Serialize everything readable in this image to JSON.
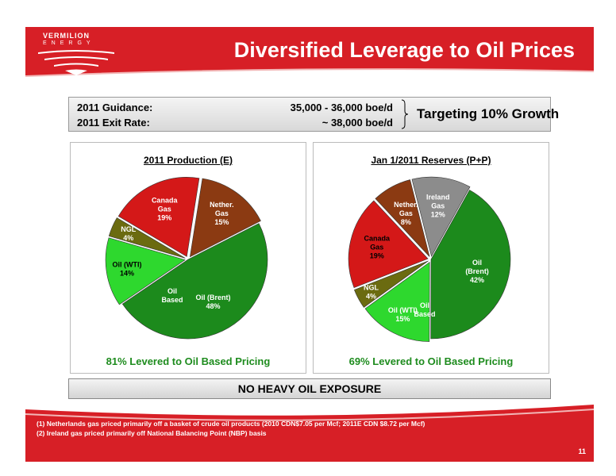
{
  "header": {
    "title": "Diversified Leverage to Oil Prices",
    "logo_line1": "VERMILION",
    "logo_line2": "ENERGY"
  },
  "guidance": {
    "row1_label": "2011 Guidance:",
    "row1_value": "35,000 - 36,000 boe/d",
    "row2_label": "2011 Exit Rate:",
    "row2_value": "~ 38,000 boe/d",
    "target": "Targeting 10% Growth"
  },
  "left_panel": {
    "footer": "81% Levered to Oil Based Pricing"
  },
  "right_panel": {
    "footer": "69% Levered to Oil Based Pricing"
  },
  "banner": "NO HEAVY OIL EXPOSURE",
  "footnotes": [
    "(1)  Netherlands gas priced primarily off a basket of crude oil products (2010 CDN$7.05 per Mcf; 2011E CDN $8.72 per Mcf)",
    "(2)  Ireland gas priced primarily off National Balancing Point (NBP) basis"
  ],
  "page_number": "11",
  "colors": {
    "brand_red": "#d71f26",
    "green_text": "#1e8c1e"
  },
  "chart_data": [
    {
      "type": "pie",
      "title": "2011 Production (E)",
      "slices": [
        {
          "label": "Oil (Brent)",
          "pct_label": "48%",
          "value": 48,
          "color": "#1c8a1c",
          "lines": [
            "Oil (Brent)",
            "48%"
          ]
        },
        {
          "label": "Oil (WTI)",
          "pct_label": "14%",
          "value": 14,
          "color": "#2ed82e",
          "lines": [
            "Oil (WTI)",
            "14%"
          ]
        },
        {
          "label": "NGL",
          "pct_label": "4%",
          "value": 4,
          "color": "#6b6b10",
          "lines": [
            "NGL",
            "4%"
          ]
        },
        {
          "label": "Canada Gas",
          "pct_label": "19%",
          "value": 19,
          "color": "#d41818",
          "lines": [
            "Canada",
            "Gas",
            "19%"
          ]
        },
        {
          "label": "Nether. Gas",
          "pct_label": "15%",
          "value": 15,
          "color": "#8b3a12",
          "lines": [
            "Nether.",
            "Gas",
            "15%"
          ]
        }
      ],
      "annotation": [
        "Oil",
        "Based"
      ]
    },
    {
      "type": "pie",
      "title": "Jan 1/2011 Reserves (P+P)",
      "slices": [
        {
          "label": "Oil (Brent)",
          "pct_label": "42%",
          "value": 42,
          "color": "#1c8a1c",
          "lines": [
            "Oil",
            "(Brent)",
            "42%"
          ]
        },
        {
          "label": "Oil (WTI)",
          "pct_label": "15%",
          "value": 15,
          "color": "#2ed82e",
          "lines": [
            "Oil (WTI)",
            "15%"
          ]
        },
        {
          "label": "NGL",
          "pct_label": "4%",
          "value": 4,
          "color": "#6b6b10",
          "lines": [
            "NGL",
            "4%"
          ]
        },
        {
          "label": "Canada Gas",
          "pct_label": "19%",
          "value": 19,
          "color": "#d41818",
          "lines": [
            "Canada",
            "Gas",
            "19%"
          ]
        },
        {
          "label": "Nether. Gas",
          "pct_label": "8%",
          "value": 8,
          "color": "#8b3a12",
          "lines": [
            "Nether.",
            "Gas",
            "8%"
          ]
        },
        {
          "label": "Ireland Gas",
          "pct_label": "12%",
          "value": 12,
          "color": "#8c8c8c",
          "lines": [
            "Ireland",
            "Gas",
            "12%"
          ]
        }
      ],
      "annotation": [
        "Oil",
        "Based"
      ]
    }
  ]
}
